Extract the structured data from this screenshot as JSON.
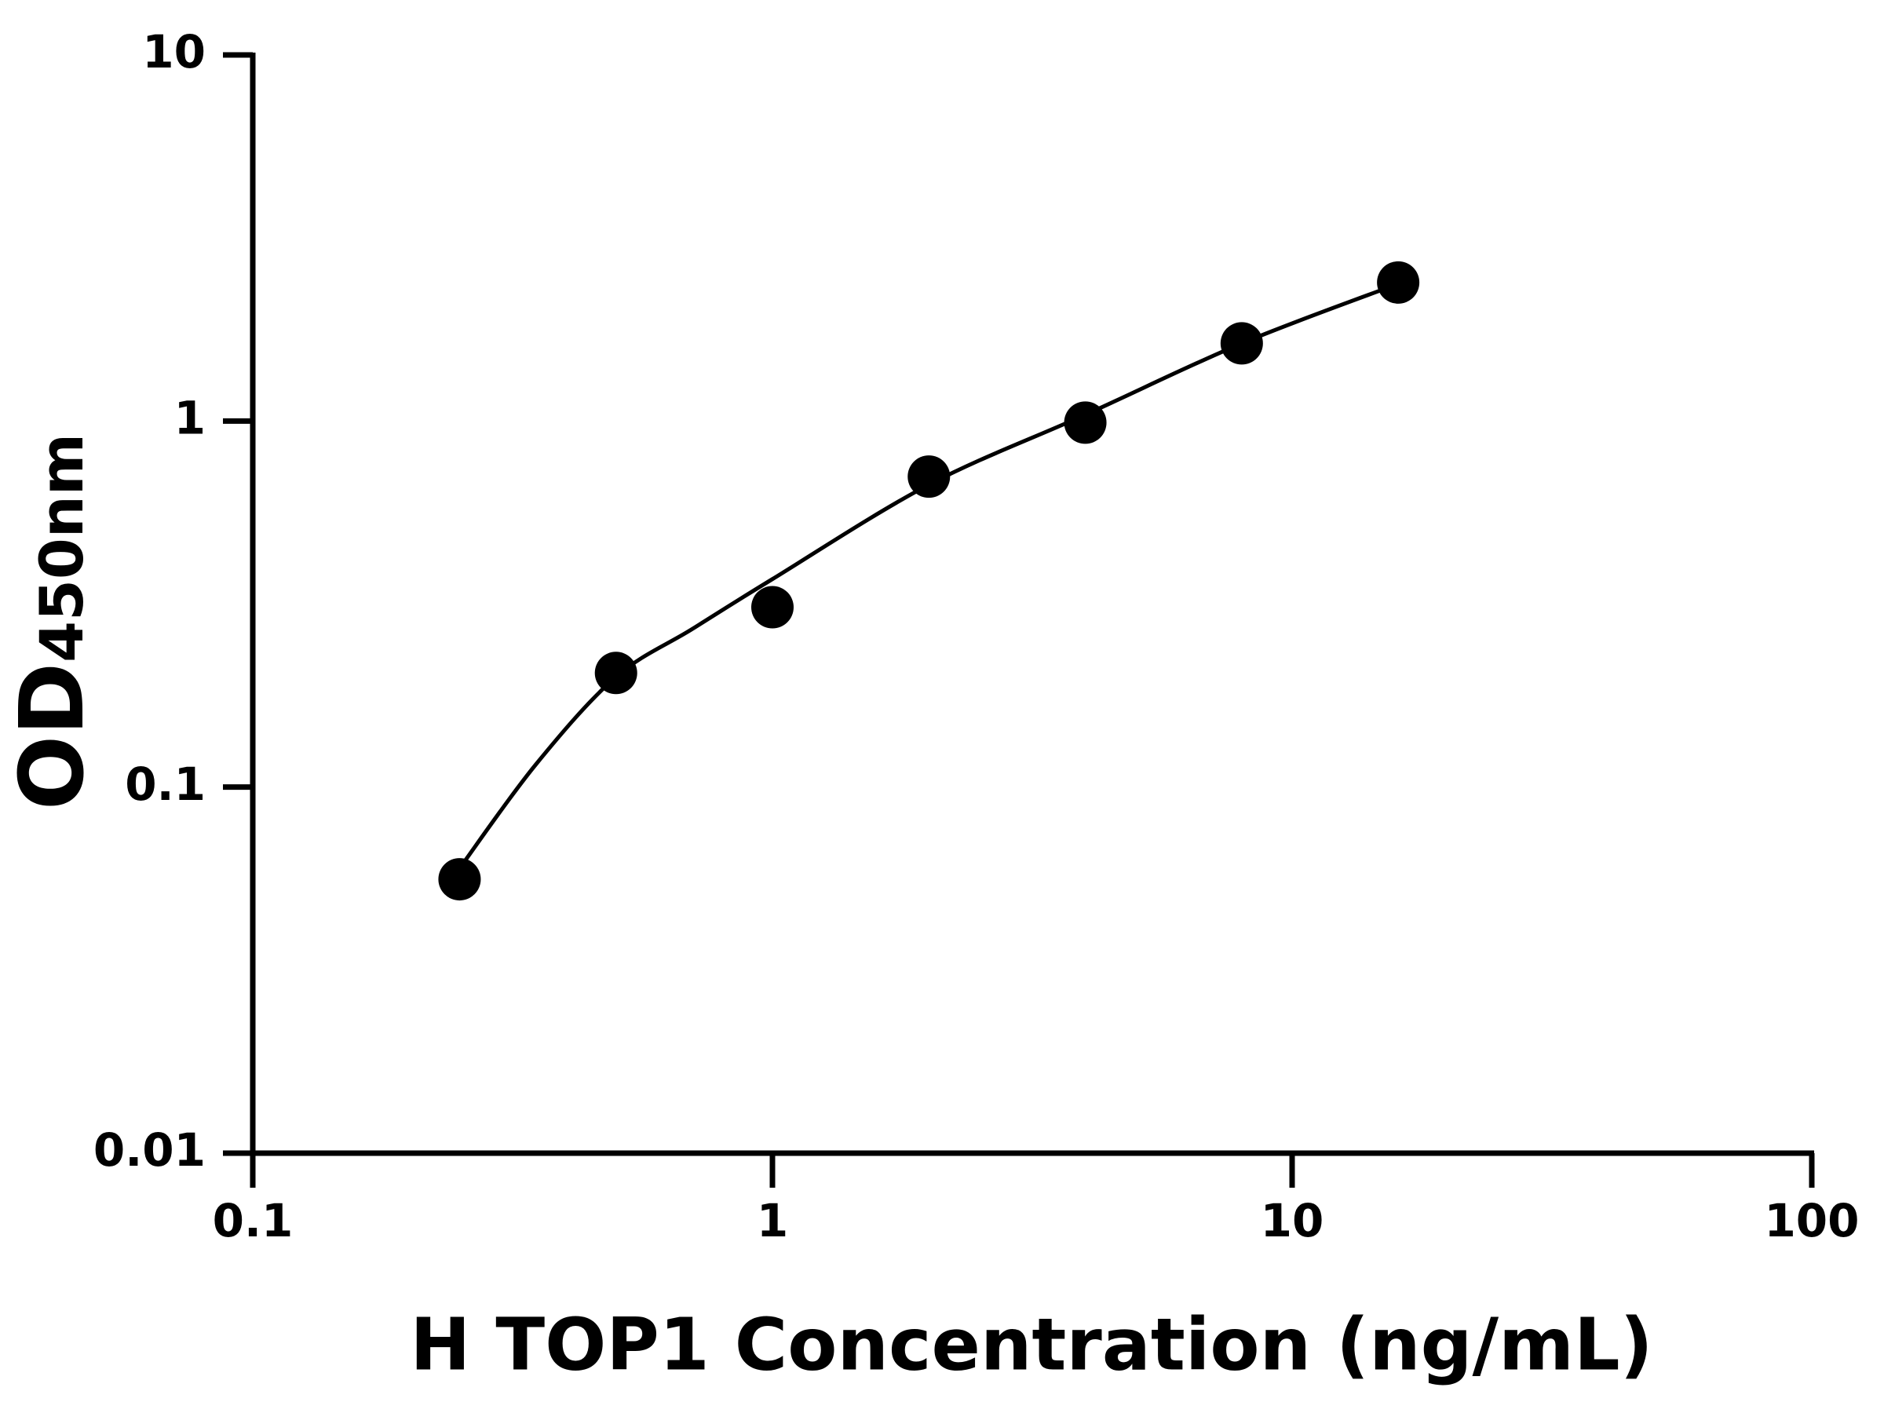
{
  "chart_data": {
    "type": "scatter",
    "x_label": "H TOP1 Concentration (ng/mL)",
    "y_label": {
      "main": "OD",
      "sub": "450nm"
    },
    "x": [
      0.25,
      0.5,
      1,
      2,
      4,
      8,
      16
    ],
    "values": [
      0.056,
      0.205,
      0.31,
      0.705,
      0.99,
      1.63,
      2.39
    ],
    "color": "#000000",
    "fit": {
      "x": [
        0.25,
        0.35,
        0.5,
        0.7,
        1,
        2,
        4,
        8,
        16
      ],
      "values": [
        0.06,
        0.115,
        0.2,
        0.27,
        0.37,
        0.67,
        1.04,
        1.63,
        2.37
      ]
    },
    "xlim": [
      0.1,
      100
    ],
    "ylim": [
      0.01,
      10
    ],
    "xticks": [
      0.1,
      1,
      10,
      100
    ],
    "yticks": [
      0.01,
      0.1,
      1,
      10
    ],
    "xscale": "log",
    "yscale": "log",
    "grid": false
  }
}
